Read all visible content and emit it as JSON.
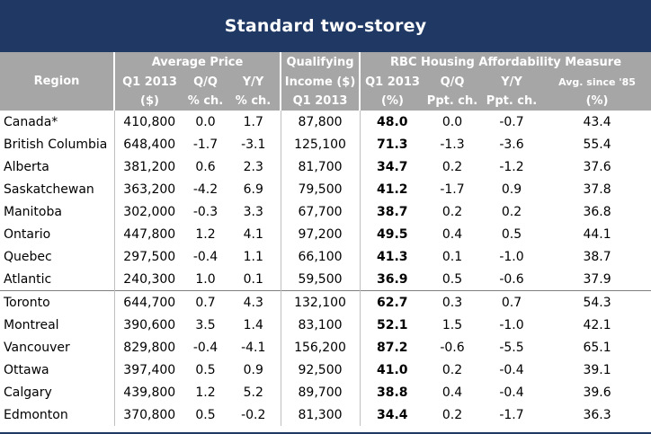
{
  "title": "Standard two-storey",
  "headers": {
    "region": "Region",
    "avg_price_group": "Average Price",
    "qual_income_group_1": "Qualifying",
    "qual_income_group_2": "Income ($)",
    "qual_income_period": "Q1 2013",
    "rbc_group": "RBC Housing Affordability Measure",
    "price_q1_line1": "Q1 2013",
    "price_q1_line2": "($)",
    "price_qq_line1": "Q/Q",
    "price_qq_line2": "% ch.",
    "price_yy_line1": "Y/Y",
    "price_yy_line2": "% ch.",
    "rbc_q1_line1": "Q1 2013",
    "rbc_q1_line2": "(%)",
    "rbc_qq_line1": "Q/Q",
    "rbc_qq_line2": "Ppt. ch.",
    "rbc_yy_line1": "Y/Y",
    "rbc_yy_line2": "Ppt. ch.",
    "rbc_avg_line1": "Avg. since '85",
    "rbc_avg_line2": "(%)"
  },
  "rows": [
    {
      "region": "Canada*",
      "price": "410,800",
      "price_qq": "0.0",
      "price_yy": "1.7",
      "income": "87,800",
      "rbc": "48.0",
      "rbc_qq": "0.0",
      "rbc_yy": "-0.7",
      "avg": "43.4"
    },
    {
      "region": "British Columbia",
      "price": "648,400",
      "price_qq": "-1.7",
      "price_yy": "-3.1",
      "income": "125,100",
      "rbc": "71.3",
      "rbc_qq": "-1.3",
      "rbc_yy": "-3.6",
      "avg": "55.4"
    },
    {
      "region": "Alberta",
      "price": "381,200",
      "price_qq": "0.6",
      "price_yy": "2.3",
      "income": "81,700",
      "rbc": "34.7",
      "rbc_qq": "0.2",
      "rbc_yy": "-1.2",
      "avg": "37.6"
    },
    {
      "region": "Saskatchewan",
      "price": "363,200",
      "price_qq": "-4.2",
      "price_yy": "6.9",
      "income": "79,500",
      "rbc": "41.2",
      "rbc_qq": "-1.7",
      "rbc_yy": "0.9",
      "avg": "37.8"
    },
    {
      "region": "Manitoba",
      "price": "302,000",
      "price_qq": "-0.3",
      "price_yy": "3.3",
      "income": "67,700",
      "rbc": "38.7",
      "rbc_qq": "0.2",
      "rbc_yy": "0.2",
      "avg": "36.8"
    },
    {
      "region": "Ontario",
      "price": "447,800",
      "price_qq": "1.2",
      "price_yy": "4.1",
      "income": "97,200",
      "rbc": "49.5",
      "rbc_qq": "0.4",
      "rbc_yy": "0.5",
      "avg": "44.1"
    },
    {
      "region": "Quebec",
      "price": "297,500",
      "price_qq": "-0.4",
      "price_yy": "1.1",
      "income": "66,100",
      "rbc": "41.3",
      "rbc_qq": "0.1",
      "rbc_yy": "-1.0",
      "avg": "38.7"
    },
    {
      "region": "Atlantic",
      "price": "240,300",
      "price_qq": "1.0",
      "price_yy": "0.1",
      "income": "59,500",
      "rbc": "36.9",
      "rbc_qq": "0.5",
      "rbc_yy": "-0.6",
      "avg": "37.9"
    },
    {
      "region": "Toronto",
      "price": "644,700",
      "price_qq": "0.7",
      "price_yy": "4.3",
      "income": "132,100",
      "rbc": "62.7",
      "rbc_qq": "0.3",
      "rbc_yy": "0.7",
      "avg": "54.3"
    },
    {
      "region": "Montreal",
      "price": "390,600",
      "price_qq": "3.5",
      "price_yy": "1.4",
      "income": "83,100",
      "rbc": "52.1",
      "rbc_qq": "1.5",
      "rbc_yy": "-1.0",
      "avg": "42.1"
    },
    {
      "region": "Vancouver",
      "price": "829,800",
      "price_qq": "-0.4",
      "price_yy": "-4.1",
      "income": "156,200",
      "rbc": "87.2",
      "rbc_qq": "-0.6",
      "rbc_yy": "-5.5",
      "avg": "65.1"
    },
    {
      "region": "Ottawa",
      "price": "397,400",
      "price_qq": "0.5",
      "price_yy": "0.9",
      "income": "92,500",
      "rbc": "41.0",
      "rbc_qq": "0.2",
      "rbc_yy": "-0.4",
      "avg": "39.1"
    },
    {
      "region": "Calgary",
      "price": "439,800",
      "price_qq": "1.2",
      "price_yy": "5.2",
      "income": "89,700",
      "rbc": "38.8",
      "rbc_qq": "0.4",
      "rbc_yy": "-0.4",
      "avg": "39.6"
    },
    {
      "region": "Edmonton",
      "price": "370,800",
      "price_qq": "0.5",
      "price_yy": "-0.2",
      "income": "81,300",
      "rbc": "34.4",
      "rbc_qq": "0.2",
      "rbc_yy": "-1.7",
      "avg": "36.3"
    }
  ],
  "colors": {
    "title_bg": "#1f3864",
    "header_bg": "#a6a6a6",
    "header_text": "#ffffff"
  }
}
